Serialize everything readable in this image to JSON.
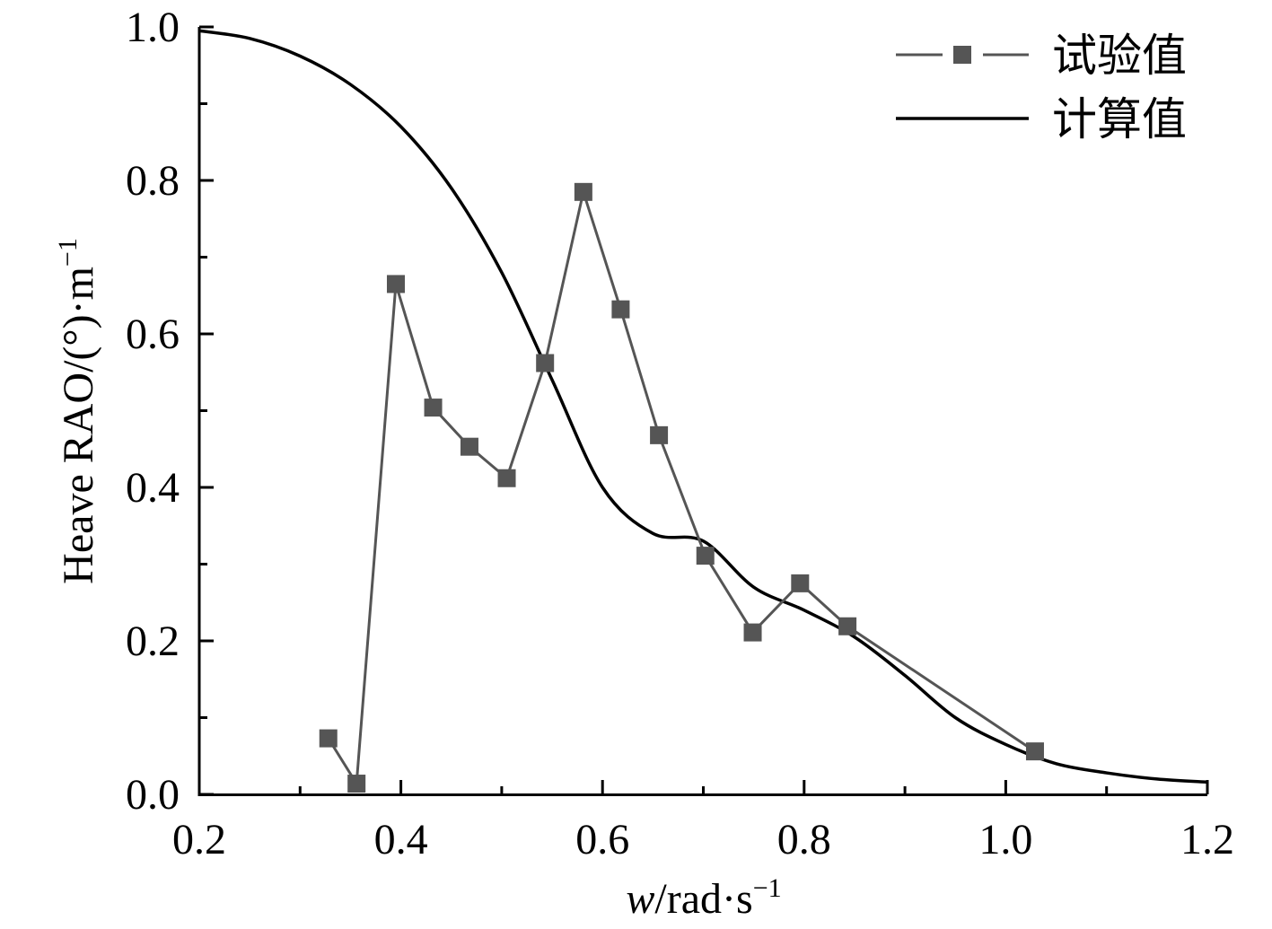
{
  "chart_data": {
    "type": "line",
    "title": "",
    "xlabel": {
      "italic": "w",
      "rest": "/rad·s",
      "sup": "−1"
    },
    "ylabel": {
      "main": "Heave RAO/(°)·m",
      "sup": "−1"
    },
    "xlim": [
      0.2,
      1.2
    ],
    "ylim": [
      0.0,
      1.0
    ],
    "xticks": [
      "0.2",
      "0.4",
      "0.6",
      "0.8",
      "1.0",
      "1.2"
    ],
    "yticks": [
      "0.0",
      "0.2",
      "0.4",
      "0.6",
      "0.8",
      "1.0"
    ],
    "grid": false,
    "legend_position": "top-right",
    "series": [
      {
        "name": "试验值",
        "style": "line-with-square-markers",
        "color": "#555555",
        "x": [
          0.328,
          0.356,
          0.395,
          0.432,
          0.468,
          0.505,
          0.543,
          0.581,
          0.618,
          0.656,
          0.702,
          0.749,
          0.796,
          0.843,
          1.029
        ],
        "y": [
          0.073,
          0.014,
          0.665,
          0.504,
          0.453,
          0.412,
          0.562,
          0.785,
          0.632,
          0.468,
          0.311,
          0.211,
          0.275,
          0.219,
          0.056
        ]
      },
      {
        "name": "计算值",
        "style": "solid-line",
        "color": "#000000",
        "x": [
          0.2,
          0.25,
          0.3,
          0.35,
          0.4,
          0.45,
          0.5,
          0.55,
          0.6,
          0.65,
          0.7,
          0.75,
          0.8,
          0.85,
          0.9,
          0.95,
          1.0,
          1.05,
          1.1,
          1.15,
          1.2
        ],
        "y": [
          0.995,
          0.985,
          0.962,
          0.925,
          0.87,
          0.79,
          0.68,
          0.54,
          0.4,
          0.34,
          0.33,
          0.27,
          0.24,
          0.205,
          0.155,
          0.1,
          0.065,
          0.04,
          0.028,
          0.02,
          0.016
        ]
      }
    ]
  }
}
